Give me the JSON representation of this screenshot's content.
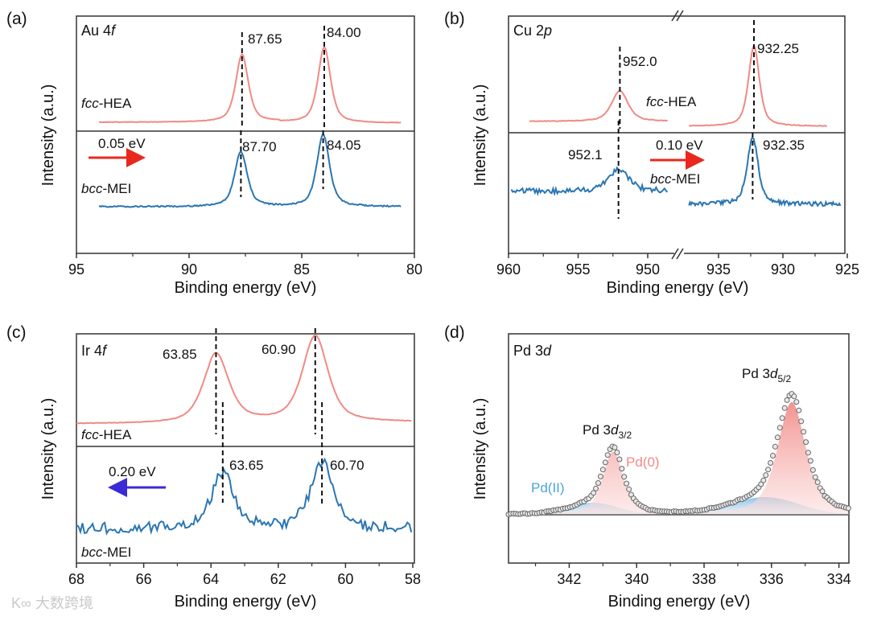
{
  "watermark": "大数跨境",
  "colors": {
    "fcc": "#f08a84",
    "bcc": "#2b76b3",
    "red_arrow": "#e8281e",
    "blue_arrow": "#3a2ad6",
    "pd0": "#f08a84",
    "pd2": "#4aa3df"
  },
  "chart_data": [
    {
      "panel": "(a)",
      "type": "line",
      "title_prefix": "Au 4",
      "title_orbital": "f",
      "xlabel": "Binding energy (eV)",
      "ylabel": "Intensity (a.u.)",
      "xlim": [
        95,
        80
      ],
      "xticks": [
        "95",
        "90",
        "85",
        "80"
      ],
      "series": [
        {
          "name_italic": "fcc",
          "name_rest": "-HEA",
          "peaks": [
            87.65,
            84.0
          ],
          "peak_labels": [
            "87.65",
            "84.00"
          ]
        },
        {
          "name_italic": "bcc",
          "name_rest": "-MEI",
          "peaks": [
            87.7,
            84.05
          ],
          "peak_labels": [
            "87.70",
            "84.05"
          ]
        }
      ],
      "shift_label": "0.05 eV",
      "shift_direction": "right"
    },
    {
      "panel": "(b)",
      "type": "line",
      "title_prefix": "Cu 2",
      "title_orbital": "p",
      "xlabel": "Binding energy (eV)",
      "ylabel": "Intensity (a.u.)",
      "xlim": [
        960,
        925
      ],
      "axis_break": [
        948,
        937
      ],
      "xticks": [
        "960",
        "955",
        "950",
        "935",
        "930",
        "925"
      ],
      "series": [
        {
          "name_italic": "fcc",
          "name_rest": "-HEA",
          "peaks": [
            952.0,
            932.25
          ],
          "peak_labels": [
            "952.0",
            "932.25"
          ]
        },
        {
          "name_italic": "bcc",
          "name_rest": "-MEI",
          "peaks": [
            952.1,
            932.35
          ],
          "peak_labels": [
            "952.1",
            "932.35"
          ]
        }
      ],
      "shift_label": "0.10 eV",
      "shift_direction": "right"
    },
    {
      "panel": "(c)",
      "type": "line",
      "title_prefix": "Ir 4",
      "title_orbital": "f",
      "xlabel": "Binding energy (eV)",
      "ylabel": "Intensity (a.u.)",
      "xlim": [
        68,
        58
      ],
      "xticks": [
        "68",
        "66",
        "64",
        "62",
        "60",
        "58"
      ],
      "series": [
        {
          "name_italic": "fcc",
          "name_rest": "-HEA",
          "peaks": [
            63.85,
            60.9
          ],
          "peak_labels": [
            "63.85",
            "60.90"
          ]
        },
        {
          "name_italic": "bcc",
          "name_rest": "-MEI",
          "peaks": [
            63.65,
            60.7
          ],
          "peak_labels": [
            "63.65",
            "60.70"
          ]
        }
      ],
      "shift_label": "0.20 eV",
      "shift_direction": "left"
    },
    {
      "panel": "(d)",
      "type": "scatter",
      "title_prefix": "Pd 3",
      "title_orbital": "d",
      "xlabel": "Binding energy (eV)",
      "ylabel": "Intensity (a.u.)",
      "xlim": [
        343.8,
        333.7
      ],
      "xticks": [
        "342",
        "340",
        "338",
        "336",
        "334"
      ],
      "peak_labels": [
        {
          "prefix": "Pd 3",
          "orbital": "d",
          "sub": "3/2",
          "position": 340.7
        },
        {
          "prefix": "Pd 3",
          "orbital": "d",
          "sub": "5/2",
          "position": 335.4
        }
      ],
      "components": [
        {
          "name": "Pd(0)",
          "peaks": [
            340.7,
            335.4
          ],
          "relative_heights": [
            0.5,
            0.9
          ]
        },
        {
          "name": "Pd(II)",
          "peaks": [
            341.3,
            336.2
          ],
          "relative_heights": [
            0.1,
            0.14
          ]
        }
      ]
    }
  ]
}
